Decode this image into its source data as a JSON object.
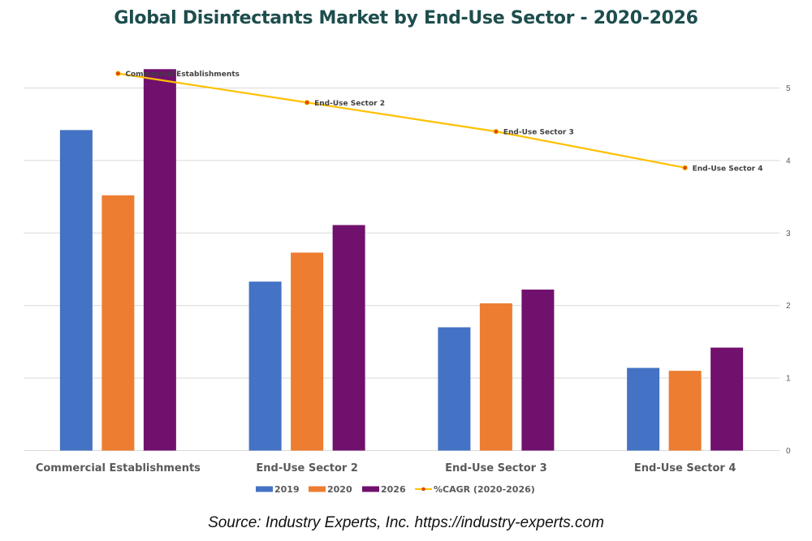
{
  "chart_data": {
    "type": "bar",
    "title": "Global Disinfectants Market by End-Use Sector - 2020-2026",
    "xlabel": "",
    "ylabel": "",
    "categories": [
      "Commercial Establishments",
      "End-Use Sector 2",
      "End-Use Sector 3",
      "End-Use Sector 4"
    ],
    "series": [
      {
        "name": "2019",
        "type": "bar",
        "color": "#4472c4",
        "values": [
          4.42,
          2.33,
          1.7,
          1.14
        ]
      },
      {
        "name": "2020",
        "type": "bar",
        "color": "#ed7d31",
        "values": [
          3.52,
          2.73,
          2.03,
          1.1
        ]
      },
      {
        "name": "2026",
        "type": "bar",
        "color": "#70116e",
        "values": [
          5.26,
          3.11,
          2.22,
          1.42
        ]
      },
      {
        "name": "%CAGR (2020-2026)",
        "type": "line",
        "color": "#ffc000",
        "marker_color": "#e04a00",
        "values": [
          5.2,
          4.8,
          4.4,
          3.9
        ],
        "data_labels": [
          "Commercial Establishments",
          "End-Use Sector 2",
          "End-Use Sector 3",
          "End-Use Sector 4"
        ]
      }
    ],
    "ylim": [
      0,
      5
    ],
    "y_ticks": [
      "0",
      "1",
      "2",
      "3",
      "4",
      "5"
    ],
    "y_axis_side": "right",
    "grid": true,
    "legend_position": "bottom"
  },
  "source": "Source: Industry Experts, Inc. https://industry-experts.com"
}
